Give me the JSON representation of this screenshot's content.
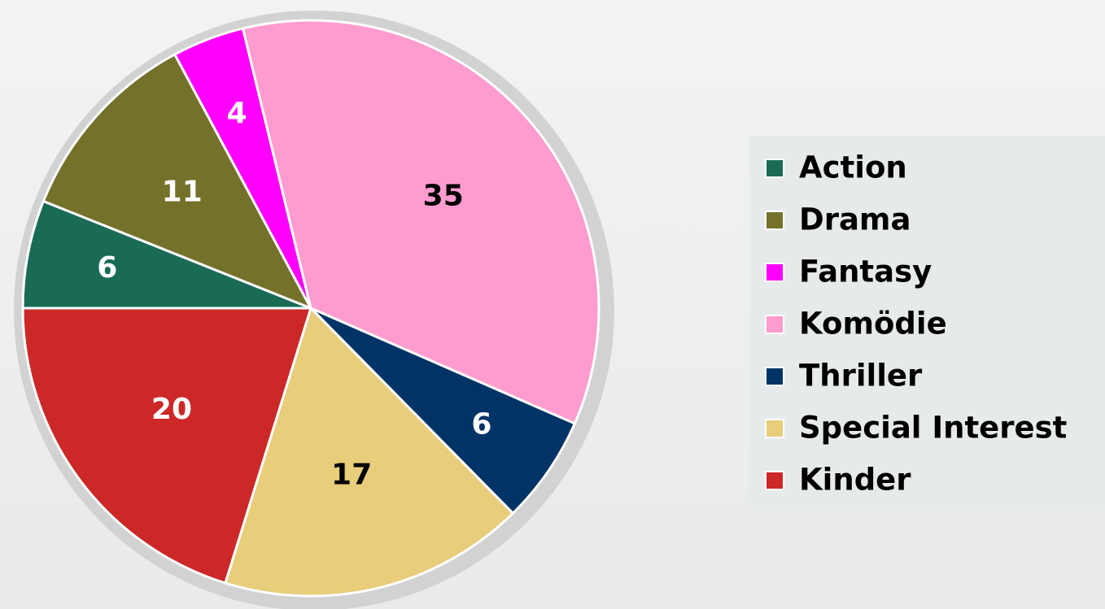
{
  "chart_data": {
    "type": "pie",
    "categories": [
      "Action",
      "Drama",
      "Fantasy",
      "Komödie",
      "Thriller",
      "Special Interest",
      "Kinder"
    ],
    "values": [
      6,
      11,
      4,
      35,
      6,
      17,
      20
    ],
    "colors": [
      "#1a6b56",
      "#74712a",
      "#ff00ff",
      "#ff9ccf",
      "#003366",
      "#e8cd7a",
      "#cc2828"
    ],
    "legend": "right"
  }
}
